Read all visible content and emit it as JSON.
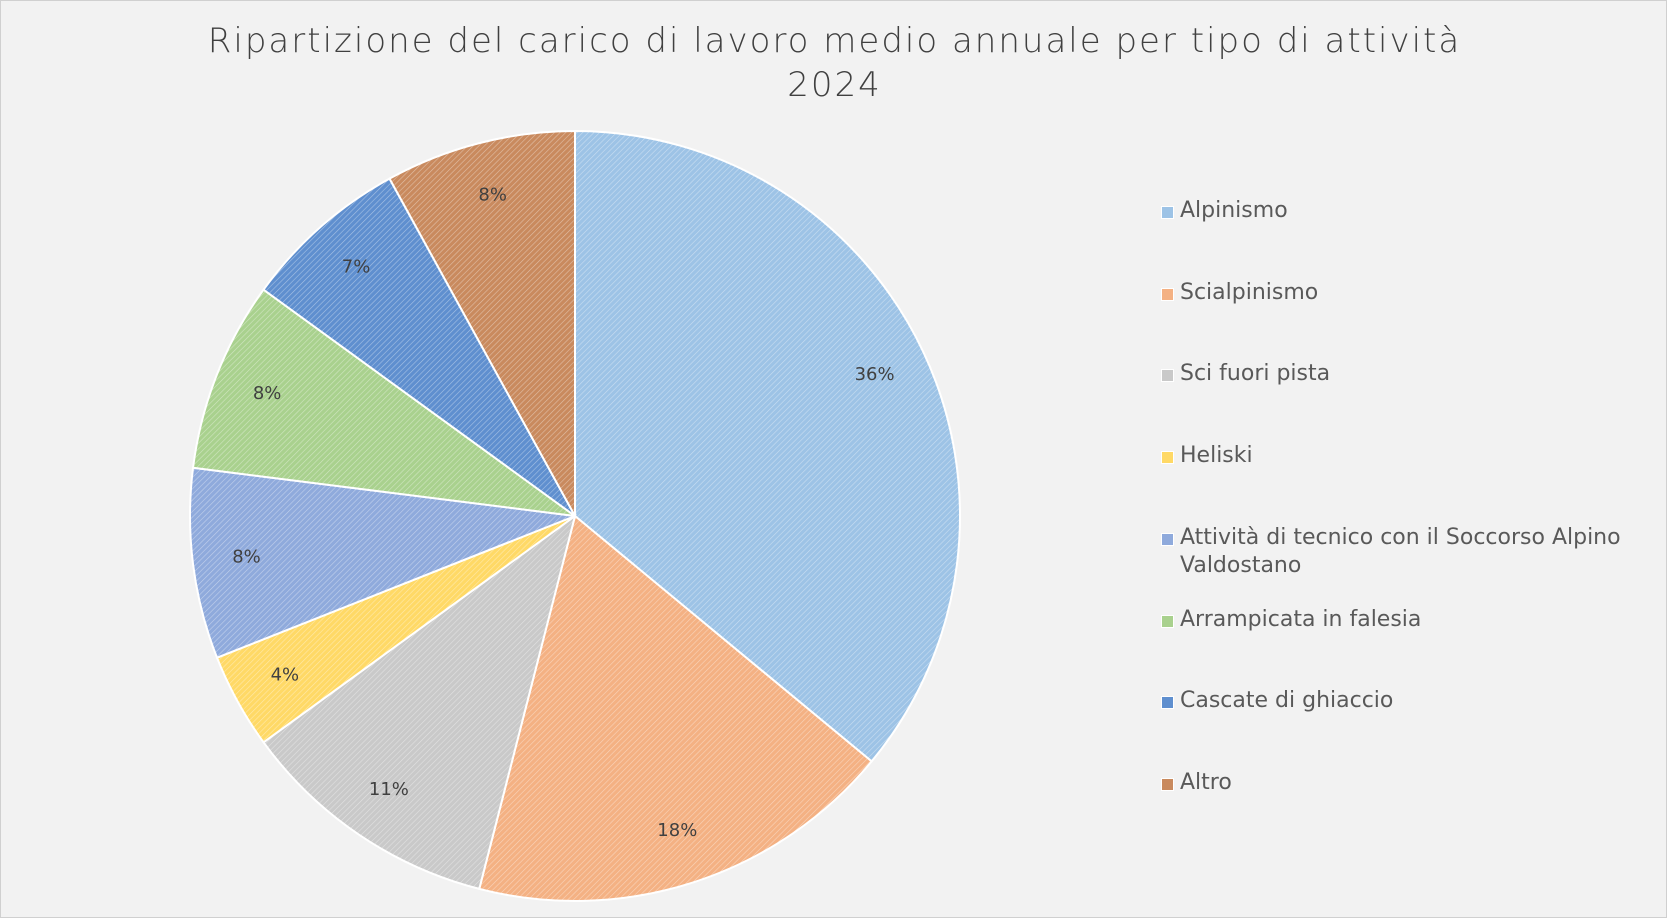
{
  "chart_data": {
    "type": "pie",
    "title": "Ripartizione del carico di lavoro medio annuale per tipo di attività",
    "subtitle": "2024",
    "categories": [
      "Alpinismo",
      "Scialpinismo",
      "Sci fuori pista",
      "Heliski",
      "Attività di tecnico con il Soccorso Alpino Valdostano",
      "Arrampicata in falesia",
      "Cascate di ghiaccio",
      "Altro"
    ],
    "values": [
      36,
      18,
      11,
      4,
      8,
      8,
      7,
      8
    ],
    "value_labels": [
      "36%",
      "18%",
      "11%",
      "4%",
      "8%",
      "8%",
      "7%",
      "8%"
    ],
    "colors": [
      "#9dc3e6",
      "#f4b183",
      "#c9c9c9",
      "#ffd966",
      "#8faadc",
      "#a9d18e",
      "#5f8fcf",
      "#c98a5e"
    ],
    "legend": "right"
  }
}
